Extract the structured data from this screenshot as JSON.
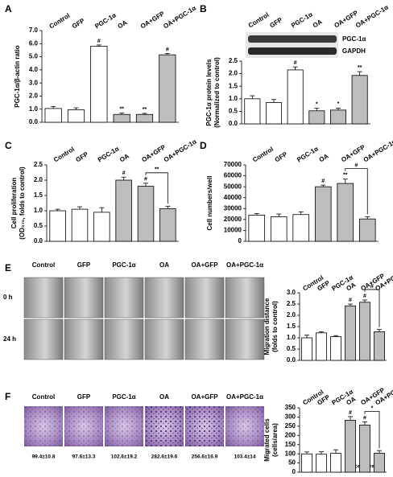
{
  "chart_data": [
    {
      "type": "bar",
      "ylabel": [
        "PGC-1α/β-actin ratio"
      ],
      "categories": [
        "Control",
        "GFP",
        "PGC-1α",
        "OA",
        "OA+GFP",
        "OA+PGC-1α"
      ],
      "values": [
        1.05,
        0.95,
        5.8,
        0.6,
        0.6,
        5.15
      ],
      "errors": [
        0.15,
        0.15,
        0.1,
        0.1,
        0.08,
        0.1
      ],
      "colors": [
        "#ffffff",
        "#ffffff",
        "#ffffff",
        "#bdbdbd",
        "#bdbdbd",
        "#bdbdbd"
      ],
      "annotations": [
        null,
        null,
        "#",
        "**",
        "**",
        "#"
      ],
      "ylim": [
        0,
        7
      ],
      "yticks": [
        {
          "value": 0,
          "label": "0.0"
        },
        {
          "value": 1,
          "label": "1.0"
        },
        {
          "value": 2,
          "label": "2.0"
        },
        {
          "value": 3,
          "label": "3.0"
        },
        {
          "value": 4,
          "label": "4.0"
        },
        {
          "value": 5,
          "label": "5.0"
        },
        {
          "value": 6,
          "label": "6.0"
        },
        {
          "value": 7,
          "label": "7.0"
        }
      ]
    },
    {
      "type": "bar",
      "ylabel": [
        "PGC-1α protein levels",
        "(Normalized to control)"
      ],
      "categories": [
        "Control",
        "GFP",
        "PGC-1α",
        "OA",
        "OA+GFP",
        "OA+PGC-1α"
      ],
      "values": [
        1.0,
        0.85,
        2.15,
        0.52,
        0.55,
        1.93
      ],
      "errors": [
        0.12,
        0.12,
        0.12,
        0.1,
        0.08,
        0.15
      ],
      "colors": [
        "#ffffff",
        "#ffffff",
        "#ffffff",
        "#bdbdbd",
        "#bdbdbd",
        "#bdbdbd"
      ],
      "annotations": [
        null,
        null,
        "#",
        "*",
        "*",
        "**"
      ],
      "ylim": [
        0,
        2.5
      ],
      "yticks": [
        {
          "value": 0,
          "label": "0.0"
        },
        0.5,
        {
          "value": 1,
          "label": "1.0"
        },
        1.5,
        {
          "value": 2,
          "label": "2.0"
        },
        2.5
      ]
    },
    {
      "type": "bar",
      "ylabel": [
        "Cell proliferation",
        "(OD₅₇₀, folds to control)"
      ],
      "categories": [
        "Control",
        "GFP",
        "PGC-1α",
        "OA",
        "OA+GFP",
        "OA+PGC-1α"
      ],
      "values": [
        1.0,
        1.05,
        0.95,
        2.0,
        1.8,
        1.07
      ],
      "errors": [
        0.05,
        0.08,
        0.15,
        0.1,
        0.1,
        0.08
      ],
      "colors": [
        "#ffffff",
        "#ffffff",
        "#ffffff",
        "#bdbdbd",
        "#bdbdbd",
        "#bdbdbd"
      ],
      "annotations": [
        null,
        null,
        null,
        "#",
        "#",
        null
      ],
      "bracket_label": "**",
      "ylim": [
        0,
        2.5
      ],
      "yticks": [
        {
          "value": 0,
          "label": "0.0"
        },
        0.5,
        {
          "value": 1,
          "label": "1.0"
        },
        1.5,
        {
          "value": 2,
          "label": "2.0"
        },
        2.5
      ]
    },
    {
      "type": "bar",
      "ylabel": [
        "Cell numbers/well"
      ],
      "categories": [
        "Control",
        "GFP",
        "PGC-1α",
        "OA",
        "OA+GFP",
        "OA+PGC-1α"
      ],
      "values": [
        24000,
        22500,
        24500,
        50000,
        53000,
        20500
      ],
      "errors": [
        1500,
        2500,
        2500,
        1500,
        4000,
        2000
      ],
      "colors": [
        "#ffffff",
        "#ffffff",
        "#ffffff",
        "#bdbdbd",
        "#bdbdbd",
        "#bdbdbd"
      ],
      "annotations": [
        null,
        null,
        null,
        "#",
        "**",
        null
      ],
      "bracket_label": "#",
      "ylim": [
        0,
        70000
      ],
      "yticks": [
        0,
        10000,
        20000,
        30000,
        40000,
        50000,
        60000,
        70000
      ]
    },
    {
      "type": "bar",
      "ylabel": [
        "Migration distance",
        "(folds to control)"
      ],
      "categories": [
        "Control",
        "GFP",
        "PGC-1α",
        "OA",
        "OA+GFP",
        "OA+PGC-1α"
      ],
      "values": [
        1.0,
        1.22,
        1.05,
        2.42,
        2.58,
        1.27
      ],
      "errors": [
        0.12,
        0.05,
        0.05,
        0.08,
        0.1,
        0.1
      ],
      "colors": [
        "#ffffff",
        "#ffffff",
        "#ffffff",
        "#bdbdbd",
        "#bdbdbd",
        "#bdbdbd"
      ],
      "annotations": [
        null,
        null,
        null,
        "#",
        "#",
        null
      ],
      "bracket_label": "#",
      "ylim": [
        0,
        3
      ],
      "yticks": [
        {
          "value": 0,
          "label": "0.0"
        },
        0.5,
        {
          "value": 1,
          "label": "1.0"
        },
        1.5,
        {
          "value": 2,
          "label": "2.0"
        },
        2.5,
        {
          "value": 3,
          "label": "3.0"
        }
      ]
    },
    {
      "type": "bar",
      "ylabel": [
        "Migrated cells",
        "(cells/area)"
      ],
      "categories": [
        "Control",
        "GFP",
        "PGC-1α",
        "OA",
        "OA+GFP",
        "OA+PGC-1α"
      ],
      "values": [
        99.4,
        97.6,
        102.6,
        282.6,
        256.6,
        103.4
      ],
      "errors": [
        10.8,
        13.3,
        19.2,
        19.6,
        16.9,
        14
      ],
      "colors": [
        "#ffffff",
        "#ffffff",
        "#ffffff",
        "#bdbdbd",
        "#bdbdbd",
        "#bdbdbd"
      ],
      "annotations": [
        null,
        null,
        null,
        "#",
        "#",
        null
      ],
      "bracket_label": "*",
      "ylim": [
        0,
        350
      ],
      "yticks": [
        0,
        50,
        100,
        150,
        200,
        250,
        300,
        350
      ]
    }
  ],
  "figure": {
    "panels": [
      "A",
      "B",
      "C",
      "D",
      "E",
      "F"
    ],
    "blot_labels": [
      "PGC-1α",
      "GAPDH"
    ],
    "migration_images": {
      "columns": [
        "Control",
        "GFP",
        "PGC-1α",
        "OA",
        "OA+GFP",
        "OA+PGC-1α"
      ],
      "rows": [
        "0 h",
        "24 h"
      ]
    },
    "transwell_images": {
      "columns": [
        "Control",
        "GFP",
        "PGC-1α",
        "OA",
        "OA+GFP",
        "OA+PGC-1α"
      ],
      "counts": [
        "99.4±10.8",
        "97.6±13.3",
        "102.6±19.2",
        "282.6±19.6",
        "256.6±16.9",
        "103.4±14"
      ],
      "unit": "(cells/area)"
    }
  }
}
